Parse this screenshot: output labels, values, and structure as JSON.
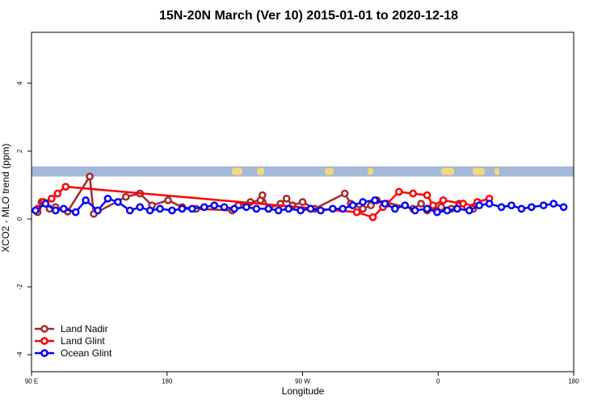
{
  "chart_data": {
    "type": "line",
    "title": "15N-20N March (Ver 10)   2015-01-01 to 2020-12-18",
    "xlabel": "Longitude",
    "ylabel": "XCO2 - MLO trend (ppm)",
    "xlim": [
      90,
      450
    ],
    "ylim": [
      -4.5,
      5.5
    ],
    "x_ticks": [
      {
        "value": 90,
        "label": "90 E"
      },
      {
        "value": 180,
        "label": "180"
      },
      {
        "value": 270,
        "label": "90 W"
      },
      {
        "value": 360,
        "label": "0"
      },
      {
        "value": 450,
        "label": "180"
      }
    ],
    "y_ticks": [
      {
        "value": -4,
        "label": "-4"
      },
      {
        "value": -2,
        "label": "-2"
      },
      {
        "value": 0,
        "label": "0"
      },
      {
        "value": 2,
        "label": "2"
      },
      {
        "value": 4,
        "label": "4"
      }
    ],
    "x_ticks_extra": [
      {
        "value": 540,
        "label": "90 E"
      },
      {
        "value": 630,
        "label": "180"
      }
    ],
    "legend_position": "bottom-left",
    "land_band": {
      "ymin": 1.25,
      "ymax": 1.55,
      "ocean_color": "#a4b8d8",
      "land_color": "#f5d77a"
    },
    "series": [
      {
        "name": "Land Nadir",
        "color": "#a52a2a",
        "x": [
          93,
          95,
          99,
          102,
          108,
          119,
          121,
          137,
          144,
          150,
          158,
          165,
          172,
          190,
          193,
          199,
          204,
          205,
          208,
          214,
          217,
          220,
          225,
          231,
          246,
          249,
          255,
          259,
          262,
          280,
          284,
          287,
          294,
          299,
          303,
          310
        ],
        "y": [
          0.2,
          0.5,
          0.3,
          0.35,
          0.22,
          1.25,
          0.15,
          0.65,
          0.75,
          0.4,
          0.55,
          0.35,
          0.3,
          0.25,
          0.4,
          0.5,
          0.55,
          0.7,
          0.3,
          0.45,
          0.6,
          0.4,
          0.5,
          0.3,
          0.75,
          0.45,
          0.3,
          0.4,
          0.55,
          0.3,
          0.45,
          0.25,
          0.35,
          0.3,
          0.45,
          0.3
        ]
      },
      {
        "name": "Land Glint",
        "color": "#ff0000",
        "x": [
          93,
          96,
          100,
          103,
          107,
          252,
          260,
          265,
          267,
          273,
          280,
          287,
          290,
          295,
          305,
          307,
          312,
          318
        ],
        "y": [
          0.3,
          0.5,
          0.6,
          0.75,
          0.95,
          0.2,
          0.05,
          0.35,
          0.45,
          0.8,
          0.75,
          0.7,
          0.4,
          0.55,
          0.45,
          0.35,
          0.5,
          0.6
        ]
      },
      {
        "name": "Ocean Glint",
        "color": "#0000ff",
        "x": [
          92,
          97,
          102,
          106,
          112,
          117,
          123,
          128,
          133,
          139,
          144,
          149,
          154,
          160,
          165,
          170,
          176,
          181,
          186,
          191,
          197,
          202,
          208,
          213,
          218,
          224,
          229,
          234,
          240,
          245,
          250,
          255,
          261,
          266,
          271,
          276,
          281,
          287,
          292,
          297,
          302,
          308,
          313,
          318,
          324,
          329,
          334,
          339,
          345,
          350,
          355
        ],
        "y": [
          0.25,
          0.45,
          0.25,
          0.3,
          0.2,
          0.55,
          0.25,
          0.6,
          0.5,
          0.25,
          0.35,
          0.25,
          0.3,
          0.25,
          0.3,
          0.3,
          0.35,
          0.4,
          0.35,
          0.3,
          0.35,
          0.3,
          0.3,
          0.25,
          0.3,
          0.25,
          0.3,
          0.25,
          0.3,
          0.3,
          0.4,
          0.5,
          0.55,
          0.45,
          0.3,
          0.4,
          0.25,
          0.3,
          0.2,
          0.25,
          0.3,
          0.25,
          0.4,
          0.45,
          0.35,
          0.4,
          0.3,
          0.35,
          0.4,
          0.45,
          0.35
        ]
      }
    ]
  }
}
